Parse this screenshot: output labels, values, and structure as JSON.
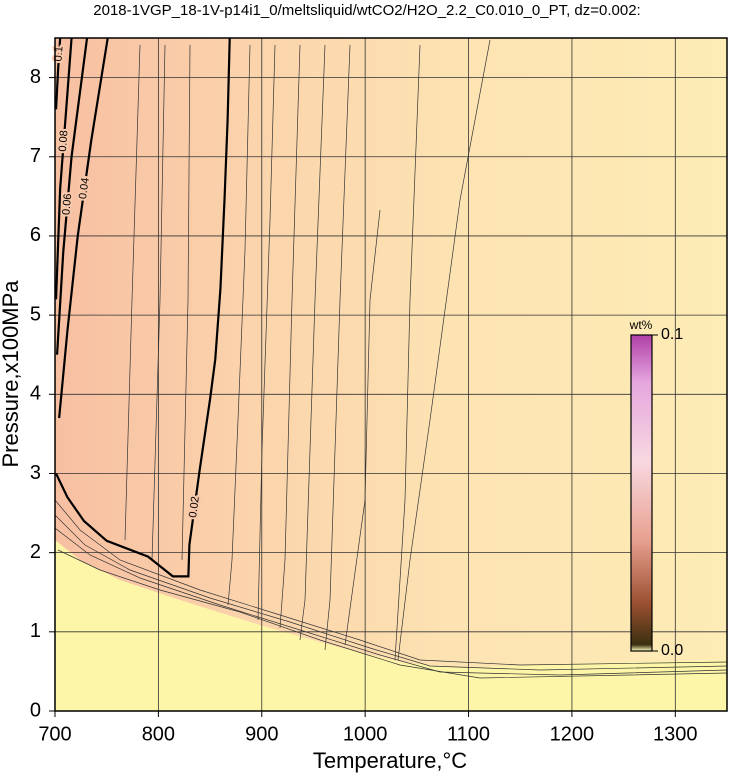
{
  "chart_data": {
    "type": "contour",
    "title": "2018-1VGP_18-1V-p14i1_0/meltsliquid/wtCO2/H2O_2.2_C0.010_0_PT, dz=0.002:",
    "x_label": "Temperature,°C",
    "y_label": "Pressure,x100MPa",
    "xlim": [
      700,
      1350
    ],
    "ylim": [
      0,
      8.5
    ],
    "xticks": [
      700,
      800,
      900,
      1000,
      1100,
      1200,
      1300
    ],
    "yticks": [
      0,
      1,
      2,
      3,
      4,
      5,
      6,
      7,
      8
    ],
    "grid": true,
    "contours": [
      {
        "level": 0.02,
        "x": [
          701,
          712,
          728,
          750,
          790,
          814,
          829,
          830,
          840,
          850,
          855,
          860,
          864,
          867,
          869
        ],
        "y": [
          3.0,
          2.7,
          2.4,
          2.15,
          1.95,
          1.7,
          1.7,
          2.1,
          3.05,
          3.94,
          4.44,
          5.33,
          6.47,
          7.48,
          8.5
        ]
      },
      {
        "level": 0.04,
        "x": [
          704,
          712,
          722,
          735,
          751
        ],
        "y": [
          3.7,
          4.8,
          6.0,
          7.2,
          8.5
        ]
      },
      {
        "level": 0.06,
        "x": [
          702,
          708,
          716,
          731
        ],
        "y": [
          4.5,
          5.8,
          7.0,
          8.5
        ]
      },
      {
        "level": 0.08,
        "x": [
          701,
          705,
          712,
          716
        ],
        "y": [
          5.2,
          6.6,
          7.8,
          8.5
        ]
      },
      {
        "level": 0.1,
        "x": [
          701,
          703,
          705
        ],
        "y": [
          7.6,
          8.1,
          8.5
        ]
      }
    ],
    "colorbar": {
      "label": "wt%",
      "range": [
        0,
        0.1
      ],
      "ticks": [
        {
          "value": 0,
          "label": "0.0"
        },
        0.1
      ]
    }
  }
}
